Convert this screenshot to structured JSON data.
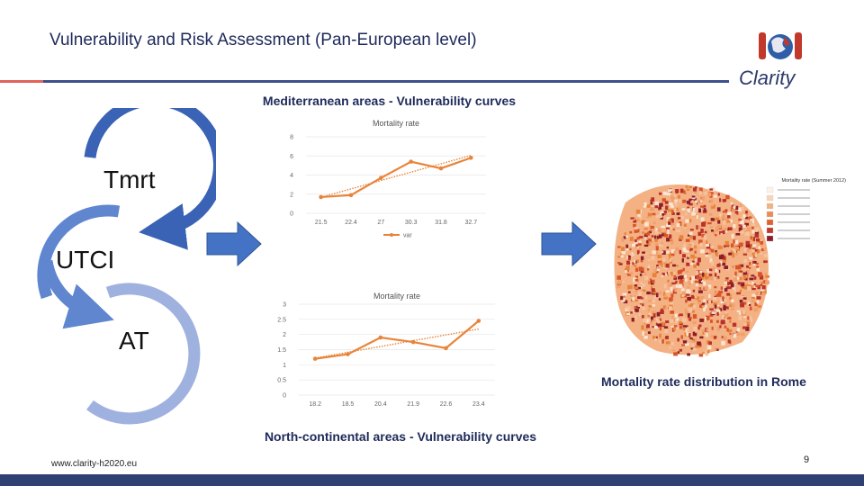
{
  "slide": {
    "title": "Vulnerability and Risk Assessment (Pan-European level)",
    "website": "www.clarity-h2020.eu",
    "page_number": "9",
    "colors": {
      "navy": "#1e2a5a",
      "rule": "#3d4e8c",
      "accent": "#e0635b",
      "orange": "#e8843a",
      "arrow": "#4472c4"
    }
  },
  "logo": {
    "text": "Clarity",
    "icon": "clarity-logo-icon"
  },
  "headings": {
    "mediterranean": "Mediterranean areas - Vulnerability curves",
    "north_continental": "North-continental areas - Vulnerability curves"
  },
  "cycle": {
    "labels": [
      "Tmrt",
      "UTCI",
      "AT"
    ]
  },
  "map": {
    "caption": "Mortality rate distribution in Rome",
    "legend_title": "Mortality rate (Summer 2012)"
  },
  "chart_data": [
    {
      "type": "line",
      "title": "Mortality rate",
      "categories": [
        "21.5",
        "22.4",
        "27",
        "30.3",
        "31.8",
        "32.7"
      ],
      "series": [
        {
          "name": "var",
          "values": [
            1.7,
            1.9,
            3.7,
            5.4,
            4.7,
            5.8
          ]
        }
      ],
      "trendline": true,
      "ylim": [
        0,
        8
      ],
      "yticks": [
        0,
        2,
        4,
        6,
        8
      ],
      "legend": "bottom",
      "grid": true
    },
    {
      "type": "line",
      "title": "Mortality rate",
      "categories": [
        "18.2",
        "18.5",
        "20.4",
        "21.9",
        "22.6",
        "23.4"
      ],
      "series": [
        {
          "values": [
            1.2,
            1.35,
            1.9,
            1.75,
            1.55,
            2.45
          ]
        }
      ],
      "trendline": true,
      "ylim": [
        0,
        3
      ],
      "yticks": [
        0,
        0.5,
        1,
        1.5,
        2,
        2.5,
        3
      ],
      "grid": true
    }
  ]
}
